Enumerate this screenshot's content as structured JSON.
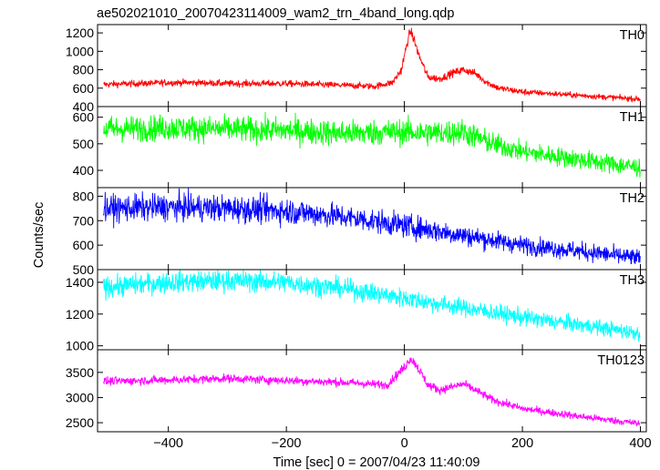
{
  "figure": {
    "title": "ae502021010_20070423114009_wam2_trn_4band_long.qdp",
    "xlabel": "Time [sec] 0 = 2007/04/23 11:40:09",
    "ylabel": "Counts/sec"
  },
  "chart_data": {
    "type": "line",
    "title": "ae502021010_20070423114009_wam2_trn_4band_long.qdp",
    "xlabel": "Time [sec] 0 = 2007/04/23 11:40:09",
    "ylabel": "Counts/sec",
    "xlim": [
      -520,
      410
    ],
    "xticks": [
      -400,
      -200,
      0,
      200,
      400
    ],
    "x_tick_labels": [
      "−400",
      "−200",
      "0",
      "200",
      "400"
    ],
    "grid": false,
    "panels": [
      {
        "name": "TH0",
        "color": "#ff0000",
        "ylim": [
          400,
          1290
        ],
        "yticks": [
          400,
          600,
          800,
          1000,
          1200
        ],
        "x": [
          -510,
          -450,
          -400,
          -350,
          -300,
          -250,
          -200,
          -150,
          -100,
          -50,
          -20,
          -5,
          5,
          10,
          15,
          25,
          40,
          60,
          80,
          100,
          120,
          140,
          160,
          200,
          250,
          300,
          350,
          400
        ],
        "y": [
          640,
          650,
          660,
          660,
          650,
          650,
          650,
          640,
          630,
          620,
          660,
          800,
          1100,
          1220,
          1150,
          950,
          720,
          700,
          760,
          800,
          760,
          660,
          600,
          560,
          540,
          520,
          500,
          480
        ],
        "noise": [
          30,
          30,
          30,
          30,
          30,
          30,
          30,
          30,
          30,
          30,
          30,
          40,
          45,
          45,
          45,
          40,
          35,
          35,
          35,
          35,
          35,
          30,
          30,
          30,
          25,
          25,
          25,
          25
        ]
      },
      {
        "name": "TH1",
        "color": "#00ff00",
        "ylim": [
          335,
          640
        ],
        "yticks": [
          400,
          500,
          600
        ],
        "x": [
          -510,
          -400,
          -300,
          -200,
          -100,
          0,
          50,
          100,
          150,
          200,
          300,
          400
        ],
        "y": [
          555,
          560,
          555,
          550,
          540,
          545,
          540,
          545,
          500,
          470,
          440,
          410
        ],
        "noise": [
          40,
          40,
          40,
          40,
          40,
          40,
          40,
          40,
          35,
          30,
          30,
          30
        ]
      },
      {
        "name": "TH2",
        "color": "#0000ff",
        "ylim": [
          500,
          835
        ],
        "yticks": [
          500,
          600,
          700,
          800
        ],
        "x": [
          -510,
          -400,
          -300,
          -200,
          -100,
          0,
          100,
          200,
          300,
          400
        ],
        "y": [
          750,
          755,
          750,
          740,
          715,
          680,
          640,
          600,
          575,
          545
        ],
        "noise": [
          45,
          45,
          45,
          45,
          40,
          40,
          35,
          30,
          30,
          30
        ]
      },
      {
        "name": "TH3",
        "color": "#00ffff",
        "ylim": [
          975,
          1480
        ],
        "yticks": [
          1000,
          1200,
          1400
        ],
        "x": [
          -510,
          -400,
          -300,
          -200,
          -100,
          0,
          100,
          200,
          300,
          400
        ],
        "y": [
          1370,
          1400,
          1410,
          1400,
          1360,
          1300,
          1240,
          1180,
          1130,
          1080
        ],
        "noise": [
          55,
          55,
          55,
          55,
          50,
          50,
          45,
          45,
          40,
          40
        ]
      },
      {
        "name": "TH0123",
        "color": "#ff00ff",
        "ylim": [
          2320,
          3950
        ],
        "yticks": [
          2500,
          3000,
          3500
        ],
        "x": [
          -510,
          -400,
          -300,
          -200,
          -100,
          -30,
          0,
          10,
          20,
          40,
          60,
          100,
          120,
          150,
          200,
          300,
          400
        ],
        "y": [
          3320,
          3350,
          3380,
          3340,
          3300,
          3250,
          3600,
          3780,
          3650,
          3250,
          3150,
          3270,
          3150,
          2950,
          2780,
          2620,
          2480
        ],
        "noise": [
          70,
          70,
          70,
          70,
          70,
          70,
          80,
          80,
          80,
          75,
          70,
          70,
          70,
          65,
          60,
          60,
          60
        ]
      }
    ]
  }
}
